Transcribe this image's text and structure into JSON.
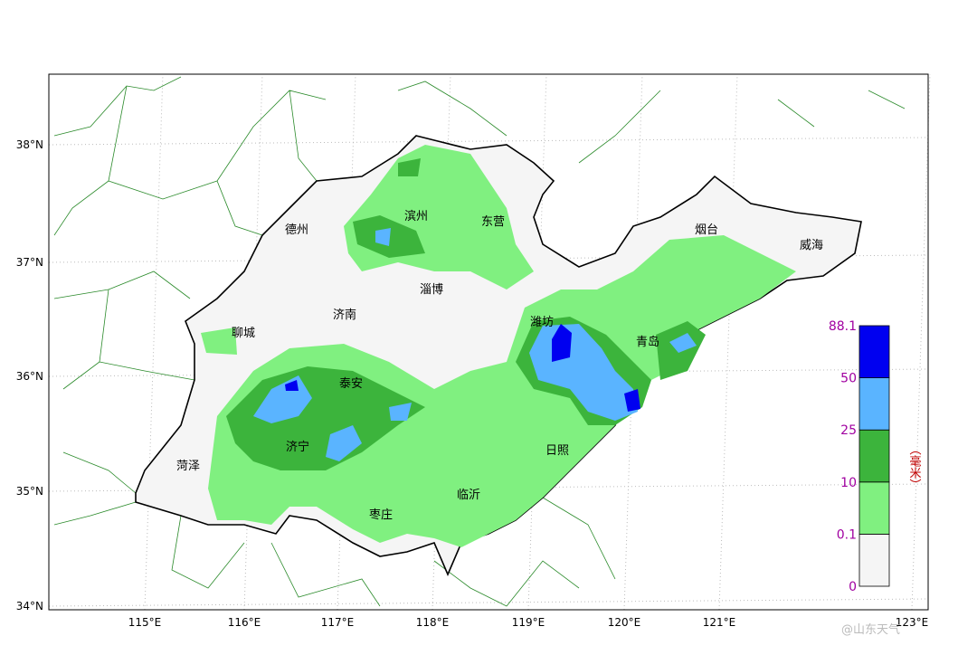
{
  "map": {
    "lat_labels": [
      "38°N",
      "37°N",
      "36°N",
      "35°N",
      "34°N"
    ],
    "lon_labels": [
      "115°E",
      "116°E",
      "117°E",
      "118°E",
      "119°E",
      "120°E",
      "121°E",
      "123°E"
    ],
    "cities": [
      "德州",
      "滨州",
      "东营",
      "烟台",
      "威海",
      "淄博",
      "济南",
      "聊城",
      "潍坊",
      "青岛",
      "泰安",
      "济宁",
      "菏泽",
      "日照",
      "临沂",
      "枣庄"
    ],
    "legend": {
      "levels": [
        0,
        0.1,
        10,
        25,
        50,
        88.1
      ],
      "colors": [
        "#f5f5f5",
        "#80f080",
        "#3cb43c",
        "#5ab4ff",
        "#0000f0"
      ],
      "unit": "（毫米）"
    },
    "watermark": "@山东天气"
  }
}
